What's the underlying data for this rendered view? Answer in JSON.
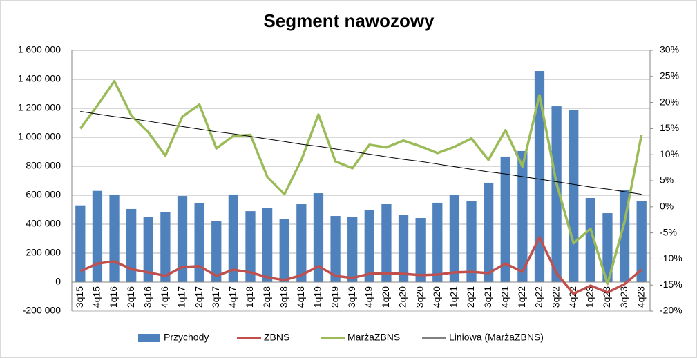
{
  "chart_data": {
    "type": "bar",
    "title": "Segment nawozowy",
    "categories": [
      "3q15",
      "4q15",
      "1q16",
      "2q16",
      "3q16",
      "4q16",
      "1q17",
      "2q17",
      "3q17",
      "4q17",
      "1q18",
      "2q18",
      "3q18",
      "4q18",
      "1q19",
      "2q19",
      "3q19",
      "4q19",
      "1q20",
      "2q20",
      "3q20",
      "4q20",
      "1q21",
      "2q21",
      "3q21",
      "4q21",
      "1q22",
      "2q22",
      "3q22",
      "4q22",
      "1q23",
      "2q23",
      "3q23",
      "4q23"
    ],
    "series": [
      {
        "name": "Przychody",
        "type": "bar",
        "color": "#4f81bd",
        "values": [
          530000,
          630000,
          605000,
          505000,
          452000,
          481000,
          595000,
          543000,
          419000,
          605000,
          490000,
          510000,
          438000,
          538000,
          614000,
          457000,
          448000,
          500000,
          538000,
          462000,
          443000,
          548000,
          600000,
          562000,
          686000,
          867000,
          905000,
          1457000,
          1214000,
          1190000,
          581000,
          476000,
          638000,
          562000
        ]
      },
      {
        "name": "ZBNS",
        "type": "line",
        "color": "#c0504d",
        "values": [
          76000,
          128000,
          143000,
          90000,
          67000,
          43000,
          105000,
          110000,
          43000,
          86000,
          67000,
          33000,
          14000,
          48000,
          110000,
          43000,
          29000,
          57000,
          62000,
          57000,
          48000,
          52000,
          67000,
          71000,
          62000,
          128000,
          71000,
          310000,
          62000,
          -81000,
          -24000,
          -71000,
          -14000,
          86000
        ]
      },
      {
        "name": "MarżaZBNS",
        "type": "line",
        "axis": "y2",
        "color": "#9bbb59",
        "values": [
          15,
          19.4,
          24.1,
          17.5,
          14.3,
          9.8,
          17.3,
          19.6,
          11.2,
          13.6,
          13.8,
          5.7,
          2.4,
          9,
          17.7,
          8.7,
          7.4,
          11.9,
          11.4,
          12.7,
          11.6,
          10.3,
          11.5,
          13.1,
          9,
          14.7,
          7.7,
          21.4,
          4.5,
          -7,
          -4.2,
          -14.8,
          -2.9,
          13.8
        ]
      },
      {
        "name": "Liniowa (MarżaZBNS)",
        "type": "line",
        "axis": "y2",
        "color": "#000000",
        "values": [
          18.3,
          17.8,
          17.3,
          16.9,
          16.4,
          15.9,
          15.4,
          14.9,
          14.4,
          14.0,
          13.5,
          13.0,
          12.5,
          12.0,
          11.6,
          11.1,
          10.6,
          10.1,
          9.6,
          9.1,
          8.7,
          8.2,
          7.7,
          7.2,
          6.7,
          6.3,
          5.8,
          5.3,
          4.8,
          4.3,
          3.8,
          3.4,
          2.9,
          2.4
        ]
      }
    ],
    "ylim": [
      -200000,
      1600000
    ],
    "yticks": [
      {
        "value": -200000,
        "label": "-200 000"
      },
      0,
      {
        "value": 200000,
        "label": "200 000"
      },
      {
        "value": 400000,
        "label": "400 000"
      },
      {
        "value": 600000,
        "label": "600 000"
      },
      {
        "value": 800000,
        "label": "800 000"
      },
      {
        "value": 1000000,
        "label": "1 000 000"
      },
      {
        "value": 1200000,
        "label": "1 200 000"
      },
      {
        "value": 1400000,
        "label": "1 400 000"
      },
      {
        "value": 1600000,
        "label": "1 600 000"
      }
    ],
    "y2lim": [
      -20,
      30
    ],
    "y2ticks": [
      {
        "value": -20,
        "label": "-20%"
      },
      {
        "value": -15,
        "label": "-15%"
      },
      {
        "value": -10,
        "label": "-10%"
      },
      {
        "value": -5,
        "label": "-5%"
      },
      {
        "value": 0,
        "label": "0%"
      },
      {
        "value": 5,
        "label": "5%"
      },
      {
        "value": 10,
        "label": "10%"
      },
      {
        "value": 15,
        "label": "15%"
      },
      {
        "value": 20,
        "label": "20%"
      },
      {
        "value": 25,
        "label": "25%"
      },
      {
        "value": 30,
        "label": "30%"
      }
    ],
    "grid": true,
    "legend": "bottom"
  }
}
